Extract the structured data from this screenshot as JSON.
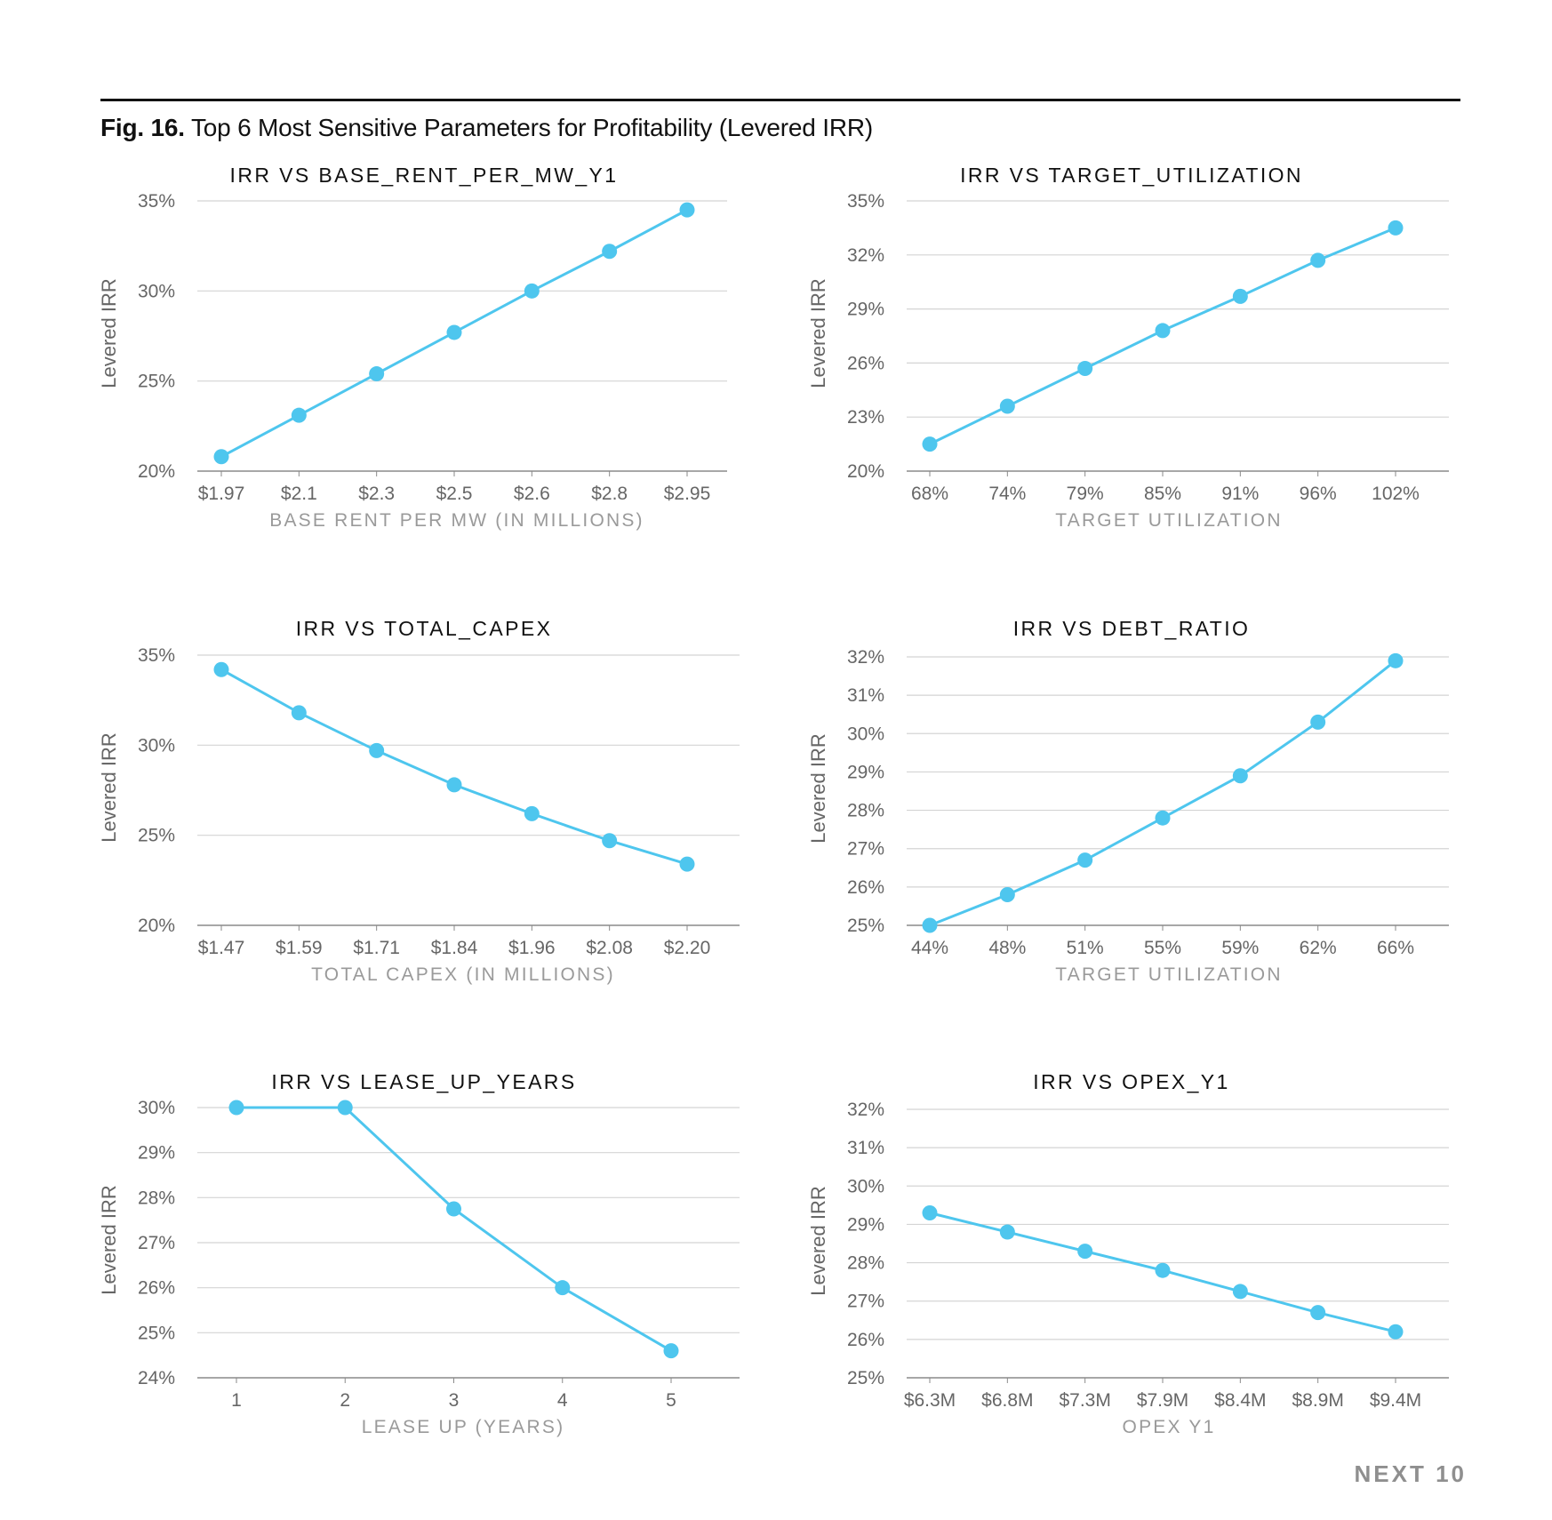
{
  "figure": {
    "label": "Fig. 16.",
    "title": "Top 6 Most Sensitive Parameters for Profitability (Levered IRR)"
  },
  "footer": {
    "page_label": "NEXT 10"
  },
  "colors": {
    "series": "#4ec6ee",
    "grid": "#d4d4d4",
    "text_muted": "#9a9a9a"
  },
  "chart_data": [
    {
      "type": "line",
      "title": "IRR VS BASE_RENT_PER_MW_Y1",
      "xlabel": "BASE RENT PER MW (IN MILLIONS)",
      "ylabel": "Levered IRR",
      "categories": [
        "$1.97",
        "$2.1",
        "$2.3",
        "$2.5",
        "$2.6",
        "$2.8",
        "$2.95"
      ],
      "values": [
        20.8,
        23.1,
        25.4,
        27.7,
        30.0,
        32.2,
        34.5
      ],
      "ylim": [
        20,
        35
      ],
      "yticks": [
        20,
        25,
        30,
        35
      ],
      "ytick_labels": [
        "20%",
        "25%",
        "30%",
        "35%"
      ],
      "grid": true
    },
    {
      "type": "line",
      "title": "IRR VS TARGET_UTILIZATION",
      "xlabel": "TARGET UTILIZATION",
      "ylabel": "Levered IRR",
      "categories": [
        "68%",
        "74%",
        "79%",
        "85%",
        "91%",
        "96%",
        "102%"
      ],
      "values": [
        21.5,
        23.6,
        25.7,
        27.8,
        29.7,
        31.7,
        33.5
      ],
      "ylim": [
        20,
        35
      ],
      "yticks": [
        20,
        23,
        26,
        29,
        32,
        35
      ],
      "ytick_labels": [
        "20%",
        "23%",
        "26%",
        "29%",
        "32%",
        "35%"
      ],
      "grid": true
    },
    {
      "type": "line",
      "title": "IRR VS TOTAL_CAPEX",
      "xlabel": "TOTAL CAPEX (IN MILLIONS)",
      "ylabel": "Levered IRR",
      "categories": [
        "$1.47",
        "$1.59",
        "$1.71",
        "$1.84",
        "$1.96",
        "$2.08",
        "$2.20"
      ],
      "values": [
        34.2,
        31.8,
        29.7,
        27.8,
        26.2,
        24.7,
        23.4
      ],
      "ylim": [
        20,
        35
      ],
      "yticks": [
        20,
        25,
        30,
        35
      ],
      "ytick_labels": [
        "20%",
        "25%",
        "30%",
        "35%"
      ],
      "grid": true
    },
    {
      "type": "line",
      "title": "IRR VS DEBT_RATIO",
      "xlabel": "TARGET UTILIZATION",
      "ylabel": "Levered IRR",
      "categories": [
        "44%",
        "48%",
        "51%",
        "55%",
        "59%",
        "62%",
        "66%"
      ],
      "values": [
        25.0,
        25.8,
        26.7,
        27.8,
        28.9,
        30.3,
        31.9
      ],
      "ylim": [
        25,
        32
      ],
      "yticks": [
        25,
        26,
        27,
        28,
        29,
        30,
        31,
        32
      ],
      "ytick_labels": [
        "25%",
        "26%",
        "27%",
        "28%",
        "29%",
        "30%",
        "31%",
        "32%"
      ],
      "grid": true
    },
    {
      "type": "line",
      "title": "IRR VS LEASE_UP_YEARS",
      "xlabel": "LEASE UP (YEARS)",
      "ylabel": "Levered IRR",
      "categories": [
        "1",
        "2",
        "3",
        "4",
        "5"
      ],
      "values": [
        30.0,
        30.0,
        27.75,
        26.0,
        24.6
      ],
      "ylim": [
        24,
        30
      ],
      "yticks": [
        24,
        25,
        26,
        27,
        28,
        29,
        30
      ],
      "ytick_labels": [
        "24%",
        "25%",
        "26%",
        "27%",
        "28%",
        "29%",
        "30%"
      ],
      "grid": true
    },
    {
      "type": "line",
      "title": "IRR VS OPEX_Y1",
      "xlabel": "OPEX Y1",
      "ylabel": "Levered IRR",
      "categories": [
        "$6.3M",
        "$6.8M",
        "$7.3M",
        "$7.9M",
        "$8.4M",
        "$8.9M",
        "$9.4M"
      ],
      "values": [
        29.3,
        28.8,
        28.3,
        27.8,
        27.25,
        26.7,
        26.2
      ],
      "ylim": [
        25,
        32
      ],
      "yticks": [
        25,
        26,
        27,
        28,
        29,
        30,
        31,
        32
      ],
      "ytick_labels": [
        "25%",
        "26%",
        "27%",
        "28%",
        "29%",
        "30%",
        "31%",
        "32%"
      ],
      "grid": true
    }
  ]
}
